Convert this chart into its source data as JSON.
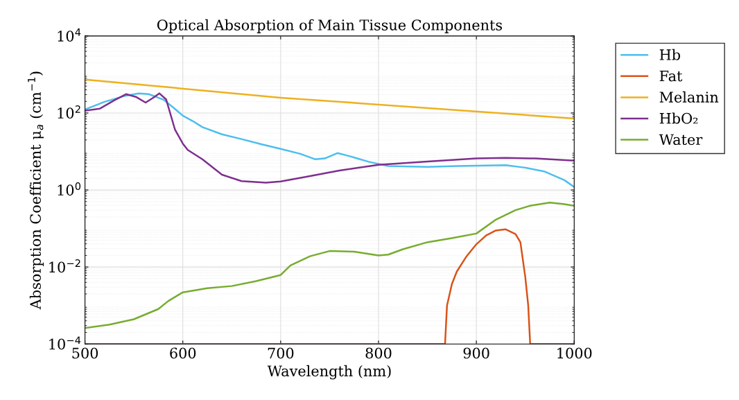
{
  "chart_data": {
    "type": "line",
    "title": "Optical Absorption of Main Tissue Components",
    "xlabel": "Wavelength (nm)",
    "ylabel": "Absorption Coefficient μ$_{a}$ (cm$^{−1}$)",
    "log": "y",
    "grid": true,
    "legend": "right",
    "xlim": [
      500,
      1000
    ],
    "xticks": [
      500,
      600,
      700,
      800,
      900,
      1000
    ],
    "ylim": [
      0.0001,
      10000
    ],
    "yticks": [
      {
        "value": 0.0001,
        "label": "10$^{−4}$"
      },
      {
        "value": 0.01,
        "label": "10$^{−2}$"
      },
      {
        "value": 1,
        "label": "10$^{0}$"
      },
      {
        "value": 100,
        "label": "10$^{2}$"
      },
      {
        "value": 10000,
        "label": "10$^{4}$"
      }
    ],
    "series": [
      {
        "name": "Hb",
        "color": "#4dbeee",
        "x": [
          500,
          520,
          540,
          555,
          565,
          580,
          590,
          600,
          610,
          620,
          640,
          660,
          680,
          700,
          720,
          735,
          745,
          758,
          770,
          790,
          810,
          850,
          880,
          900,
          930,
          950,
          970,
          990,
          1000
        ],
        "values": [
          123,
          195,
          275,
          324,
          309,
          224,
          141,
          85,
          62,
          43,
          28,
          21,
          15.5,
          11.7,
          8.7,
          6.3,
          6.6,
          9.1,
          7.6,
          5.4,
          4.2,
          4.0,
          4.2,
          4.3,
          4.4,
          3.8,
          3.0,
          1.8,
          1.2
        ]
      },
      {
        "name": "Fat",
        "color": "#d95319",
        "x": [
          500,
          868,
          870,
          875,
          880,
          890,
          900,
          910,
          920,
          930,
          940,
          945,
          950,
          953,
          955,
          1000
        ],
        "values": [
          0.0001,
          0.0001,
          0.001,
          0.0036,
          0.0076,
          0.019,
          0.039,
          0.066,
          0.089,
          0.095,
          0.072,
          0.044,
          0.0055,
          0.001,
          0.0001,
          0.0001
        ]
      },
      {
        "name": "Melanin",
        "color": "#edb120",
        "x": [
          500,
          700,
          1000
        ],
        "values": [
          740,
          250,
          72
        ]
      },
      {
        "name": "HbO₂",
        "color": "#7e2f8e",
        "x": [
          500,
          515,
          530,
          542,
          552,
          562,
          570,
          576,
          583,
          592,
          600,
          605,
          620,
          640,
          660,
          685,
          700,
          730,
          760,
          800,
          850,
          900,
          930,
          960,
          1000
        ],
        "values": [
          115,
          129,
          214,
          309,
          263,
          186,
          251,
          324,
          224,
          37,
          16,
          11,
          6.3,
          2.5,
          1.7,
          1.55,
          1.66,
          2.3,
          3.2,
          4.5,
          5.5,
          6.6,
          6.8,
          6.6,
          5.8
        ]
      },
      {
        "name": "Water",
        "color": "#77ac30",
        "x": [
          500,
          525,
          550,
          575,
          585,
          600,
          625,
          650,
          675,
          700,
          710,
          730,
          750,
          775,
          800,
          810,
          825,
          850,
          875,
          900,
          920,
          940,
          955,
          975,
          990,
          1000
        ],
        "values": [
          0.00026,
          0.00032,
          0.00044,
          0.00081,
          0.0013,
          0.0022,
          0.0028,
          0.0032,
          0.0043,
          0.0062,
          0.011,
          0.019,
          0.026,
          0.025,
          0.02,
          0.021,
          0.029,
          0.044,
          0.056,
          0.074,
          0.17,
          0.3,
          0.39,
          0.47,
          0.43,
          0.39
        ]
      }
    ]
  }
}
